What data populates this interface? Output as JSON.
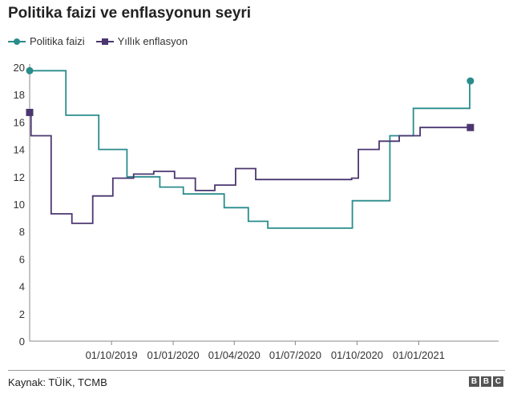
{
  "chart_data": {
    "type": "line",
    "title": "Politika faizi ve enflasyonun seyri",
    "source": "Kaynak: TÜİK, TCMB",
    "logo_letters": [
      "B",
      "B",
      "C"
    ],
    "ylim": [
      0,
      20
    ],
    "yticks": [
      "0",
      "2",
      "4",
      "6",
      "8",
      "10",
      "12",
      "14",
      "16",
      "18",
      "20"
    ],
    "xlim": [
      "2019-06-01",
      "2021-04-30"
    ],
    "xticks": [
      {
        "date": "2019-10-01",
        "label": "01/10/2019"
      },
      {
        "date": "2020-01-01",
        "label": "01/01/2020"
      },
      {
        "date": "2020-04-01",
        "label": "01/04/2020"
      },
      {
        "date": "2020-07-01",
        "label": "01/07/2020"
      },
      {
        "date": "2020-10-01",
        "label": "01/10/2020"
      },
      {
        "date": "2021-01-01",
        "label": "01/01/2021"
      }
    ],
    "grid": false,
    "legend_position": "top-left",
    "series": [
      {
        "name": "Politika faizi",
        "color": "#2a8c8c",
        "marker": "circle",
        "step": true,
        "points": [
          {
            "x": "2019-06-01",
            "y": 19.75
          },
          {
            "x": "2019-07-25",
            "y": 16.5
          },
          {
            "x": "2019-09-12",
            "y": 14.0
          },
          {
            "x": "2019-10-24",
            "y": 12.0
          },
          {
            "x": "2019-12-12",
            "y": 11.25
          },
          {
            "x": "2020-01-16",
            "y": 10.75
          },
          {
            "x": "2020-02-19",
            "y": 10.75
          },
          {
            "x": "2020-03-17",
            "y": 9.75
          },
          {
            "x": "2020-04-22",
            "y": 8.75
          },
          {
            "x": "2020-05-21",
            "y": 8.25
          },
          {
            "x": "2020-09-24",
            "y": 10.25
          },
          {
            "x": "2020-11-19",
            "y": 15.0
          },
          {
            "x": "2020-12-24",
            "y": 17.0
          },
          {
            "x": "2021-03-18",
            "y": 19.0
          },
          {
            "x": "2021-03-19",
            "y": 19.0
          }
        ]
      },
      {
        "name": "Yıllık enflasyon",
        "color": "#4b3670",
        "marker": "square",
        "step": true,
        "points": [
          {
            "x": "2019-06-01",
            "y": 16.7
          },
          {
            "x": "2019-06-03",
            "y": 15.0
          },
          {
            "x": "2019-07-03",
            "y": 9.3
          },
          {
            "x": "2019-08-03",
            "y": 8.6
          },
          {
            "x": "2019-09-03",
            "y": 10.6
          },
          {
            "x": "2019-10-03",
            "y": 11.9
          },
          {
            "x": "2019-11-03",
            "y": 12.2
          },
          {
            "x": "2019-12-03",
            "y": 12.4
          },
          {
            "x": "2020-01-03",
            "y": 11.9
          },
          {
            "x": "2020-02-03",
            "y": 11.0
          },
          {
            "x": "2020-03-03",
            "y": 11.4
          },
          {
            "x": "2020-04-03",
            "y": 12.6
          },
          {
            "x": "2020-05-03",
            "y": 11.8
          },
          {
            "x": "2020-09-23",
            "y": 11.9
          },
          {
            "x": "2020-10-03",
            "y": 14.0
          },
          {
            "x": "2020-11-03",
            "y": 14.6
          },
          {
            "x": "2020-12-03",
            "y": 15.0
          },
          {
            "x": "2021-01-03",
            "y": 15.6
          },
          {
            "x": "2021-03-19",
            "y": 15.6
          }
        ]
      }
    ]
  }
}
